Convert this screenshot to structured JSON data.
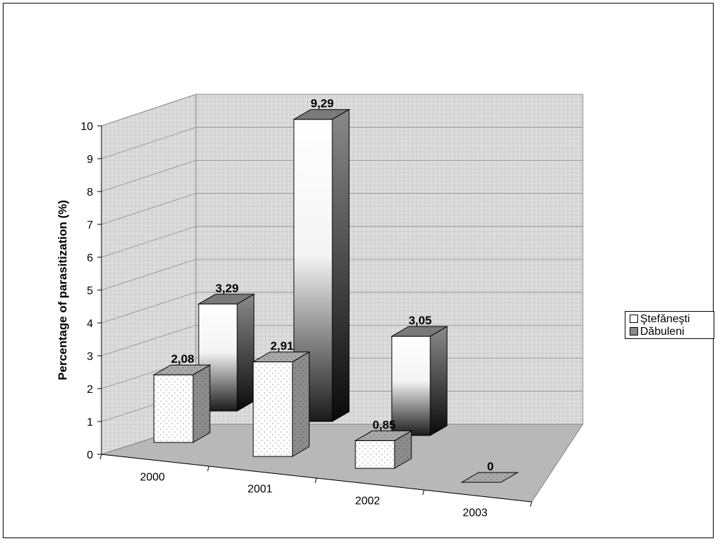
{
  "chart_data": {
    "type": "bar",
    "categories": [
      "2000",
      "2001",
      "2002",
      "2003"
    ],
    "series": [
      {
        "name": "Ştefăneşti",
        "values": [
          2.08,
          2.91,
          0.85,
          0
        ],
        "labels": [
          "2,08",
          "2,91",
          "0,85",
          "0"
        ]
      },
      {
        "name": "Dăbuleni",
        "values": [
          3.29,
          9.29,
          3.05,
          0
        ],
        "labels": [
          "3,29",
          "9,29",
          "3,05",
          ""
        ]
      }
    ],
    "title": "",
    "xlabel": "",
    "ylabel": "Percentage of parasitization (%)",
    "ylim": [
      0,
      10
    ],
    "yticks": [
      "0",
      "1",
      "2",
      "3",
      "4",
      "5",
      "6",
      "7",
      "8",
      "9",
      "10"
    ],
    "grid": true,
    "legend_position": "right"
  },
  "colors": {
    "floor": "#b8b8b8",
    "walls": "#d8d8d8",
    "series_0_fill": "#ffffff",
    "series_1_fill": "#8a8a8a"
  }
}
